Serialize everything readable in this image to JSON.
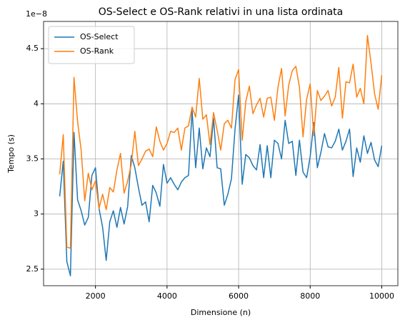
{
  "chart_data": {
    "type": "line",
    "title": "OS-Select e OS-Rank relativi in una lista ordinata",
    "xlabel": "Dimensione (n)",
    "ylabel": "Tempo (s)",
    "y_offset_label": "1e−8",
    "x": [
      1000,
      1100,
      1200,
      1300,
      1400,
      1500,
      1600,
      1700,
      1800,
      1900,
      2000,
      2100,
      2200,
      2300,
      2400,
      2500,
      2600,
      2700,
      2800,
      2900,
      3000,
      3100,
      3200,
      3300,
      3400,
      3500,
      3600,
      3700,
      3800,
      3900,
      4000,
      4100,
      4200,
      4300,
      4400,
      4500,
      4600,
      4700,
      4800,
      4900,
      5000,
      5100,
      5200,
      5300,
      5400,
      5500,
      5600,
      5700,
      5800,
      5900,
      6000,
      6100,
      6200,
      6300,
      6400,
      6500,
      6600,
      6700,
      6800,
      6900,
      7000,
      7100,
      7200,
      7300,
      7400,
      7500,
      7600,
      7700,
      7800,
      7900,
      8000,
      8100,
      8200,
      8300,
      8400,
      8500,
      8600,
      8700,
      8800,
      8900,
      9000,
      9100,
      9200,
      9300,
      9400,
      9500,
      9600,
      9700,
      9800,
      9900,
      10000
    ],
    "series": [
      {
        "name": "OS-Select",
        "color": "#1f77b4",
        "values": [
          3.16,
          3.48,
          2.57,
          2.44,
          3.74,
          3.13,
          3.03,
          2.9,
          2.97,
          3.35,
          3.42,
          3.05,
          2.88,
          2.58,
          2.93,
          3.03,
          2.88,
          3.06,
          2.91,
          3.07,
          3.53,
          3.42,
          3.24,
          3.08,
          3.11,
          2.93,
          3.26,
          3.19,
          3.07,
          3.45,
          3.28,
          3.33,
          3.27,
          3.22,
          3.29,
          3.33,
          3.35,
          3.94,
          3.42,
          3.78,
          3.41,
          3.6,
          3.52,
          3.87,
          3.42,
          3.41,
          3.08,
          3.18,
          3.32,
          3.77,
          4.08,
          3.27,
          3.54,
          3.51,
          3.44,
          3.4,
          3.63,
          3.33,
          3.62,
          3.33,
          3.67,
          3.64,
          3.5,
          3.85,
          3.64,
          3.66,
          3.35,
          3.67,
          3.38,
          3.33,
          3.52,
          3.83,
          3.42,
          3.56,
          3.73,
          3.61,
          3.6,
          3.66,
          3.77,
          3.58,
          3.66,
          3.77,
          3.34,
          3.6,
          3.47,
          3.71,
          3.55,
          3.65,
          3.49,
          3.43,
          3.62
        ]
      },
      {
        "name": "OS-Rank",
        "color": "#ff7f0e",
        "values": [
          3.36,
          3.72,
          2.7,
          2.69,
          4.24,
          3.84,
          3.58,
          3.12,
          3.37,
          3.22,
          3.3,
          3.05,
          3.18,
          3.04,
          3.24,
          3.2,
          3.4,
          3.55,
          3.19,
          3.3,
          3.45,
          3.75,
          3.44,
          3.5,
          3.57,
          3.59,
          3.52,
          3.79,
          3.66,
          3.58,
          3.64,
          3.75,
          3.74,
          3.78,
          3.58,
          3.78,
          3.8,
          3.97,
          3.88,
          4.23,
          3.86,
          3.9,
          3.63,
          3.92,
          3.76,
          3.58,
          3.82,
          3.85,
          3.78,
          4.22,
          4.31,
          3.67,
          4.02,
          4.16,
          3.91,
          3.99,
          4.05,
          3.88,
          4.05,
          4.06,
          3.85,
          4.15,
          4.32,
          3.89,
          4.17,
          4.3,
          4.34,
          4.15,
          3.7,
          4.04,
          4.18,
          3.71,
          4.12,
          4.03,
          4.07,
          4.12,
          3.98,
          4.06,
          4.33,
          3.87,
          4.2,
          4.19,
          4.36,
          4.06,
          4.14,
          4.0,
          4.62,
          4.37,
          4.09,
          3.95,
          4.26
        ]
      }
    ],
    "xlim": [
      550,
      10450
    ],
    "ylim": [
      2.35,
      4.747
    ],
    "xticks": [
      2000,
      4000,
      6000,
      8000,
      10000
    ],
    "yticks": [
      2.5,
      3.0,
      3.5,
      4.0,
      4.5
    ],
    "grid": true,
    "legend": "upper-left"
  }
}
